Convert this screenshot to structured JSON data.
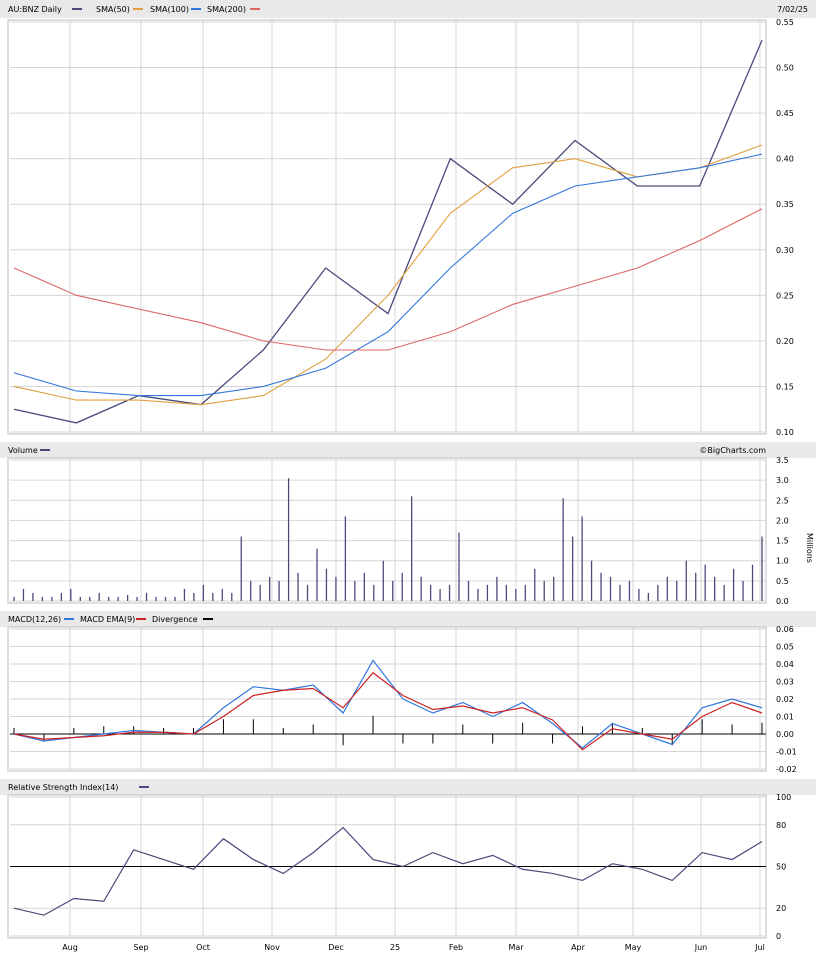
{
  "header": {
    "symbol": "AU:BNZ Daily",
    "date": "7/02/25",
    "legend": [
      {
        "label": "SMA(50)",
        "color": "#e0a040"
      },
      {
        "label": "SMA(100)",
        "color": "#e0a040"
      },
      {
        "label": "SMA(200)",
        "color": "#3377dd"
      }
    ],
    "brand": "©BigCharts.com"
  },
  "colors": {
    "price": "#4a4a7a",
    "sma50": "#e0a040",
    "sma100": "#3377dd",
    "sma200": "#dd6666",
    "macd": "#3377dd",
    "macd_ema": "#cc2222",
    "bars": "#4a4a7a"
  },
  "chart_data": [
    {
      "type": "line",
      "title": "AU:BNZ Daily",
      "ylim": [
        0.1,
        0.55
      ],
      "yticks": [
        "0.55",
        "0.50",
        "0.45",
        "0.40",
        "0.35",
        "0.30",
        "0.25",
        "0.20",
        "0.15",
        "0.10"
      ],
      "xticks": [
        "Aug",
        "Sep",
        "Oct",
        "Nov",
        "Dec",
        "25",
        "Feb",
        "Mar",
        "Apr",
        "May",
        "Jun",
        "Jul"
      ],
      "series": [
        {
          "name": "AU:BNZ Daily",
          "x": [
            0,
            1,
            2,
            3,
            4,
            5,
            6,
            7,
            8,
            9,
            10,
            11,
            12
          ],
          "values": [
            0.125,
            0.11,
            0.14,
            0.13,
            0.19,
            0.28,
            0.23,
            0.4,
            0.35,
            0.42,
            0.37,
            0.37,
            0.53
          ]
        },
        {
          "name": "SMA(50)",
          "x": [
            0,
            1,
            2,
            3,
            4,
            5,
            6,
            7,
            8,
            9,
            10,
            11,
            12
          ],
          "values": [
            0.15,
            0.135,
            0.135,
            0.13,
            0.14,
            0.18,
            0.25,
            0.34,
            0.39,
            0.4,
            0.38,
            0.39,
            0.415
          ]
        },
        {
          "name": "SMA(100)",
          "x": [
            0,
            1,
            2,
            3,
            4,
            5,
            6,
            7,
            8,
            9,
            10,
            11,
            12
          ],
          "values": [
            0.165,
            0.145,
            0.14,
            0.14,
            0.15,
            0.17,
            0.21,
            0.28,
            0.34,
            0.37,
            0.38,
            0.39,
            0.405
          ]
        },
        {
          "name": "SMA(200)",
          "x": [
            0,
            1,
            2,
            3,
            4,
            5,
            6,
            7,
            8,
            9,
            10,
            11,
            12
          ],
          "values": [
            0.28,
            0.25,
            0.235,
            0.22,
            0.2,
            0.19,
            0.19,
            0.21,
            0.24,
            0.26,
            0.28,
            0.31,
            0.345
          ]
        }
      ]
    },
    {
      "type": "bar",
      "title": "Volume",
      "ylabel": "Millions",
      "ylim": [
        0,
        3.5
      ],
      "yticks": [
        "3.5",
        "3.0",
        "2.5",
        "2.0",
        "1.5",
        "1.0",
        "0.5",
        "0.0"
      ],
      "values": [
        0.1,
        0.3,
        0.2,
        0.1,
        0.1,
        0.2,
        0.3,
        0.1,
        0.1,
        0.2,
        0.1,
        0.1,
        0.15,
        0.1,
        0.2,
        0.1,
        0.1,
        0.1,
        0.3,
        0.2,
        0.4,
        0.2,
        0.3,
        0.2,
        1.6,
        0.5,
        0.4,
        0.6,
        0.5,
        3.05,
        0.7,
        0.4,
        1.3,
        0.8,
        0.6,
        2.1,
        0.5,
        0.7,
        0.4,
        1.0,
        0.5,
        0.7,
        2.6,
        0.6,
        0.4,
        0.3,
        0.4,
        1.7,
        0.5,
        0.3,
        0.4,
        0.6,
        0.4,
        0.3,
        0.4,
        0.8,
        0.5,
        0.6,
        2.55,
        1.6,
        2.1,
        1.0,
        0.7,
        0.6,
        0.4,
        0.5,
        0.3,
        0.2,
        0.4,
        0.6,
        0.5,
        1.0,
        0.7,
        0.9,
        0.6,
        0.4,
        0.8,
        0.5,
        0.9,
        1.6
      ]
    },
    {
      "type": "line",
      "title": "MACD(12,26)",
      "ylim": [
        -0.02,
        0.06
      ],
      "yticks": [
        "0.06",
        "0.05",
        "0.04",
        "0.03",
        "0.02",
        "0.01",
        "0.00",
        "-0.01",
        "-0.02"
      ],
      "series": [
        {
          "name": "MACD(12,26)",
          "x": [
            0,
            1,
            2,
            3,
            4,
            5,
            6,
            7,
            8,
            9,
            10,
            11,
            12,
            13,
            14,
            15,
            16,
            17,
            18,
            19,
            20,
            21,
            22,
            23,
            24,
            25
          ],
          "values": [
            0.0,
            -0.004,
            -0.002,
            0.0,
            0.002,
            0.001,
            0.0,
            0.015,
            0.027,
            0.025,
            0.028,
            0.012,
            0.042,
            0.02,
            0.012,
            0.018,
            0.01,
            0.018,
            0.006,
            -0.008,
            0.006,
            0.0,
            -0.006,
            0.015,
            0.02,
            0.015
          ]
        },
        {
          "name": "MACD EMA(9)",
          "x": [
            0,
            1,
            2,
            3,
            4,
            5,
            6,
            7,
            8,
            9,
            10,
            11,
            12,
            13,
            14,
            15,
            16,
            17,
            18,
            19,
            20,
            21,
            22,
            23,
            24,
            25
          ],
          "values": [
            0.0,
            -0.003,
            -0.002,
            -0.001,
            0.001,
            0.001,
            0.0,
            0.01,
            0.022,
            0.025,
            0.026,
            0.015,
            0.035,
            0.022,
            0.014,
            0.016,
            0.012,
            0.015,
            0.008,
            -0.009,
            0.003,
            0.0,
            -0.003,
            0.01,
            0.018,
            0.012
          ]
        }
      ],
      "legend": [
        {
          "label": "MACD(12,26)"
        },
        {
          "label": "MACD EMA(9)",
          "color": "#3377dd"
        },
        {
          "label": "Divergence",
          "color": "#cc2222"
        }
      ]
    },
    {
      "type": "line",
      "title": "Relative Strength Index(14)",
      "ylim": [
        0,
        100
      ],
      "yticks": [
        "100",
        "80",
        "50",
        "20",
        "0"
      ],
      "series": [
        {
          "name": "Relative Strength Index(14)",
          "x": [
            0,
            1,
            2,
            3,
            4,
            5,
            6,
            7,
            8,
            9,
            10,
            11,
            12,
            13,
            14,
            15,
            16,
            17,
            18,
            19,
            20,
            21,
            22,
            23,
            24,
            25
          ],
          "values": [
            20,
            15,
            27,
            25,
            62,
            55,
            48,
            70,
            55,
            45,
            60,
            78,
            55,
            50,
            60,
            52,
            58,
            48,
            45,
            40,
            52,
            48,
            40,
            60,
            55,
            68
          ]
        }
      ]
    }
  ]
}
